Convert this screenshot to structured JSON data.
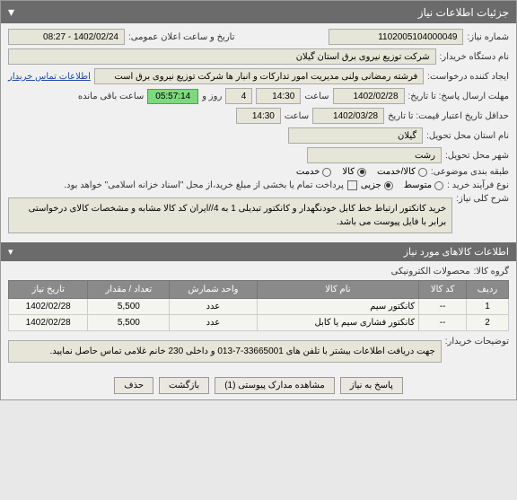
{
  "header": {
    "title": "جزئیات اطلاعات نیاز"
  },
  "form": {
    "need_no_label": "شماره نیاز:",
    "need_no": "1102005104000049",
    "public_datetime_label": "تاریخ و ساعت اعلان عمومی:",
    "public_datetime": "1402/02/24 - 08:27",
    "buyer_dev_label": "نام دستگاه خریدار:",
    "buyer_dev": "شرکت توزیع نیروی برق استان گیلان",
    "creator_label": "ایجاد کننده درخواست:",
    "creator": "فرشته رمضانی ولنی مدیریت امور تدارکات و انبار ها شرکت توزیع نیروی برق است",
    "contact_link": "اطلاعات تماس خریدار",
    "deadline_label": "مهلت ارسال پاسخ: تا تاریخ:",
    "deadline_date": "1402/02/28",
    "saat_label": "ساعت",
    "deadline_time": "14:30",
    "days_count": "4",
    "days_unit": "روز و",
    "countdown": "05:57:14",
    "remaining": "ساعت باقی مانده",
    "min_valid_label": "حداقل تاریخ اعتبار قیمت: تا تاریخ",
    "min_valid_date": "1402/03/28",
    "min_valid_time": "14:30",
    "province_label": "نام استان محل تحویل:",
    "province": "گیلان",
    "city_label": "شهر محل تحویل:",
    "city": "رشت",
    "category_label": "طبقه بندی موضوعی:",
    "cat_options": [
      "کالا/خدمت",
      "کالا",
      "خدمت"
    ],
    "cat_selected": 1,
    "purchase_type_label": "نوع فرآیند خرید :",
    "purchase_options": [
      "متوسط",
      "جزیی"
    ],
    "purchase_selected": 1,
    "payment_note": "پرداخت تمام یا بخشی از مبلغ خرید،از محل \"اسناد خزانه اسلامی\" خواهد بود.",
    "desc_label": "شرح کلی نیاز:",
    "desc": "خرید کانکتور ارتباط خط کابل خودنگهدار و کانکتور تبدیلی 1 به 4//ایران کد کالا مشابه و مشخصات کالای درخواستی برابر با فایل پیوست می باشد."
  },
  "section2": {
    "title": "اطلاعات کالاهای مورد نیاز",
    "group_label": "گروه کالا:",
    "group_value": "محصولات الکترونیکی"
  },
  "table": {
    "headers": [
      "ردیف",
      "کد کالا",
      "نام کالا",
      "واحد شمارش",
      "تعداد / مقدار",
      "تاریخ نیاز"
    ],
    "rows": [
      [
        "1",
        "--",
        "کانکتور سیم",
        "عدد",
        "5,500",
        "1402/02/28"
      ],
      [
        "2",
        "--",
        "کانکتور فشاری سیم یا کابل",
        "عدد",
        "5,500",
        "1402/02/28"
      ]
    ]
  },
  "notes": {
    "label": "توضیحات خریدار:",
    "text": "جهت دریافت اطلاعات بیشتر با تلفن های 33665001-7-013 و داخلی  230 خانم غلامی تماس حاصل نمایید."
  },
  "buttons": {
    "reply": "پاسخ به نیاز",
    "attachments": "مشاهده مدارک پیوستی (1)",
    "back": "بازگشت",
    "delete": "حذف"
  }
}
